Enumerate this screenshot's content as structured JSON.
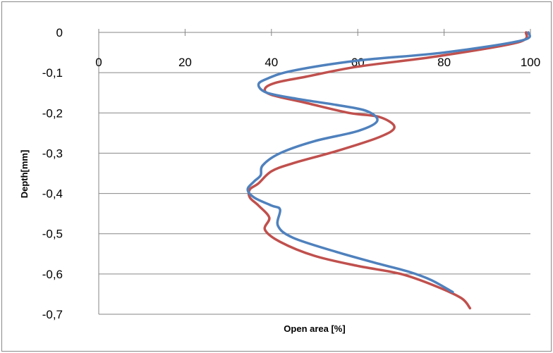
{
  "chart_data": {
    "type": "line",
    "title": "",
    "xlabel": "Open area [%]",
    "ylabel": "Depth[mm]",
    "xlim": [
      0,
      100
    ],
    "ylim": [
      -0.7,
      0
    ],
    "x_ticks": [
      0,
      20,
      40,
      60,
      80,
      100
    ],
    "y_ticks": [
      0,
      -0.1,
      -0.2,
      -0.3,
      -0.4,
      -0.5,
      -0.6,
      -0.7
    ],
    "x_tick_labels": [
      "0",
      "20",
      "40",
      "60",
      "80",
      "100"
    ],
    "y_tick_labels": [
      "0",
      "-0,1",
      "-0,2",
      "-0,3",
      "-0,4",
      "-0,5",
      "-0,6",
      "-0,7"
    ],
    "x_axis_position": "top",
    "grid": "horizontal",
    "legend": "none",
    "series": [
      {
        "color": "#4F81BD",
        "points": [
          [
            99.5,
            0.0
          ],
          [
            98.0,
            -0.02
          ],
          [
            80.0,
            -0.05
          ],
          [
            60.0,
            -0.07
          ],
          [
            45.0,
            -0.095
          ],
          [
            39.0,
            -0.115
          ],
          [
            37.0,
            -0.13
          ],
          [
            39.0,
            -0.15
          ],
          [
            46.0,
            -0.165
          ],
          [
            55.0,
            -0.18
          ],
          [
            62.0,
            -0.195
          ],
          [
            64.5,
            -0.22
          ],
          [
            60.0,
            -0.245
          ],
          [
            50.0,
            -0.27
          ],
          [
            42.0,
            -0.3
          ],
          [
            38.0,
            -0.33
          ],
          [
            37.5,
            -0.355
          ],
          [
            36.0,
            -0.37
          ],
          [
            34.5,
            -0.39
          ],
          [
            36.0,
            -0.41
          ],
          [
            40.0,
            -0.43
          ],
          [
            42.0,
            -0.44
          ],
          [
            41.5,
            -0.48
          ],
          [
            45.0,
            -0.51
          ],
          [
            55.0,
            -0.545
          ],
          [
            65.0,
            -0.575
          ],
          [
            72.0,
            -0.595
          ],
          [
            77.0,
            -0.615
          ],
          [
            82.0,
            -0.645
          ]
        ]
      },
      {
        "color": "#C0504D",
        "points": [
          [
            99.0,
            0.0
          ],
          [
            97.0,
            -0.025
          ],
          [
            78.0,
            -0.06
          ],
          [
            60.0,
            -0.085
          ],
          [
            48.0,
            -0.11
          ],
          [
            41.0,
            -0.125
          ],
          [
            38.5,
            -0.14
          ],
          [
            40.0,
            -0.155
          ],
          [
            48.0,
            -0.175
          ],
          [
            58.0,
            -0.2
          ],
          [
            65.0,
            -0.21
          ],
          [
            68.5,
            -0.235
          ],
          [
            65.0,
            -0.26
          ],
          [
            55.0,
            -0.295
          ],
          [
            45.0,
            -0.325
          ],
          [
            40.0,
            -0.345
          ],
          [
            37.0,
            -0.375
          ],
          [
            35.0,
            -0.39
          ],
          [
            35.0,
            -0.41
          ],
          [
            37.0,
            -0.43
          ],
          [
            39.5,
            -0.46
          ],
          [
            38.5,
            -0.49
          ],
          [
            42.0,
            -0.52
          ],
          [
            50.0,
            -0.555
          ],
          [
            60.0,
            -0.58
          ],
          [
            70.0,
            -0.6
          ],
          [
            78.0,
            -0.63
          ],
          [
            84.0,
            -0.66
          ],
          [
            86.0,
            -0.685
          ]
        ]
      }
    ]
  }
}
